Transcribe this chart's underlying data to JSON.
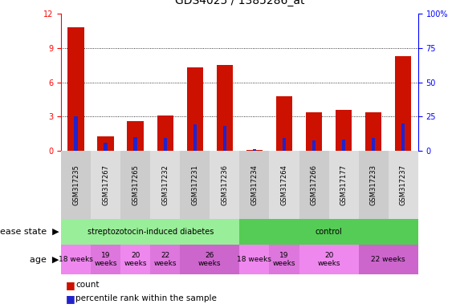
{
  "title": "GDS4025 / 1385286_at",
  "samples": [
    "GSM317235",
    "GSM317267",
    "GSM317265",
    "GSM317232",
    "GSM317231",
    "GSM317236",
    "GSM317234",
    "GSM317264",
    "GSM317266",
    "GSM317177",
    "GSM317233",
    "GSM317237"
  ],
  "counts": [
    10.8,
    1.3,
    2.6,
    3.1,
    7.3,
    7.5,
    0.05,
    4.8,
    3.4,
    3.6,
    3.4,
    8.3
  ],
  "percentile_ranks": [
    3.0,
    0.7,
    1.2,
    1.1,
    2.3,
    2.2,
    0.15,
    1.1,
    0.9,
    1.0,
    1.1,
    2.4
  ],
  "ylim_left": [
    0,
    12
  ],
  "ylim_right": [
    0,
    100
  ],
  "yticks_left": [
    0,
    3,
    6,
    9,
    12
  ],
  "yticks_right": [
    0,
    25,
    50,
    75,
    100
  ],
  "ytick_labels_right": [
    "0",
    "25",
    "50",
    "75",
    "100%"
  ],
  "bar_color": "#cc1100",
  "percentile_color": "#2222cc",
  "disease_state_groups": [
    {
      "label": "streptozotocin-induced diabetes",
      "start": 0,
      "end": 6,
      "color": "#99ee99"
    },
    {
      "label": "control",
      "start": 6,
      "end": 12,
      "color": "#55cc55"
    }
  ],
  "age_groups": [
    {
      "label": "18 weeks",
      "start": 0,
      "end": 1,
      "color": "#ee88ee"
    },
    {
      "label": "19\nweeks",
      "start": 1,
      "end": 2,
      "color": "#dd77dd"
    },
    {
      "label": "20\nweeks",
      "start": 2,
      "end": 3,
      "color": "#ee88ee"
    },
    {
      "label": "22\nweeks",
      "start": 3,
      "end": 4,
      "color": "#dd77dd"
    },
    {
      "label": "26\nweeks",
      "start": 4,
      "end": 6,
      "color": "#cc66cc"
    },
    {
      "label": "18 weeks",
      "start": 6,
      "end": 7,
      "color": "#ee88ee"
    },
    {
      "label": "19\nweeks",
      "start": 7,
      "end": 8,
      "color": "#dd77dd"
    },
    {
      "label": "20\nweeks",
      "start": 8,
      "end": 10,
      "color": "#ee88ee"
    },
    {
      "label": "22 weeks",
      "start": 10,
      "end": 12,
      "color": "#cc66cc"
    }
  ],
  "sample_bg_even": "#cccccc",
  "sample_bg_odd": "#dddddd",
  "title_fontsize": 10,
  "tick_fontsize": 7,
  "sample_fontsize": 6,
  "label_fontsize": 8,
  "age_fontsize": 6.5
}
